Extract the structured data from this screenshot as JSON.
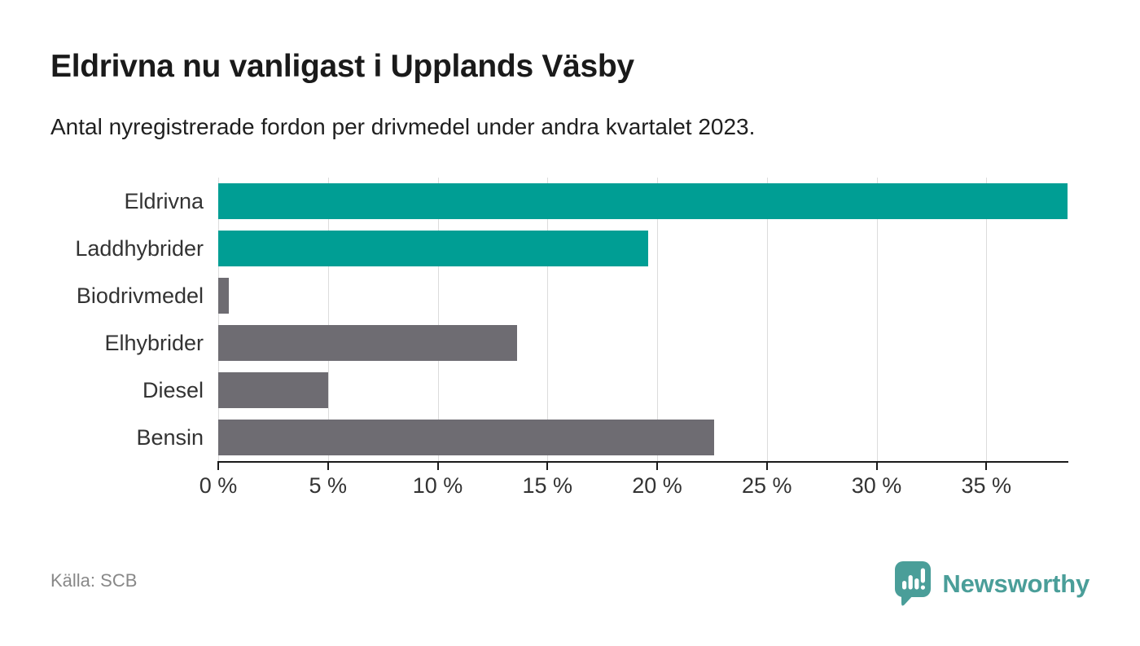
{
  "header": {
    "title": "Eldrivna nu vanligast i Upplands Väsby",
    "subtitle": "Antal nyregistrerade fordon per drivmedel under andra kvartalet 2023."
  },
  "chart_data": {
    "type": "bar",
    "orientation": "horizontal",
    "title": "Eldrivna nu vanligast i Upplands Väsby",
    "subtitle": "Antal nyregistrerade fordon per drivmedel under andra kvartalet 2023.",
    "categories": [
      "Eldrivna",
      "Laddhybrider",
      "Biodrivmedel",
      "Elhybrider",
      "Diesel",
      "Bensin"
    ],
    "values": [
      38.7,
      19.6,
      0.5,
      13.6,
      5.0,
      22.6
    ],
    "unit": "%",
    "bar_colors": [
      "#009E94",
      "#009E94",
      "#6E6C72",
      "#6E6C72",
      "#6E6C72",
      "#6E6C72"
    ],
    "x_ticks": [
      0,
      5,
      10,
      15,
      20,
      25,
      30,
      35
    ],
    "x_tick_suffix": " %",
    "xlim": [
      0,
      38.7
    ],
    "grid": true,
    "legend": false,
    "xlabel": "",
    "ylabel": ""
  },
  "footer": {
    "source": "Källa: SCB",
    "brand": "Newsworthy"
  },
  "colors": {
    "accent_teal": "#009E94",
    "bar_gray": "#6E6C72",
    "gridline": "#dcdcdc",
    "axis": "#1a1a1a",
    "brand_teal": "#4A9E99"
  }
}
